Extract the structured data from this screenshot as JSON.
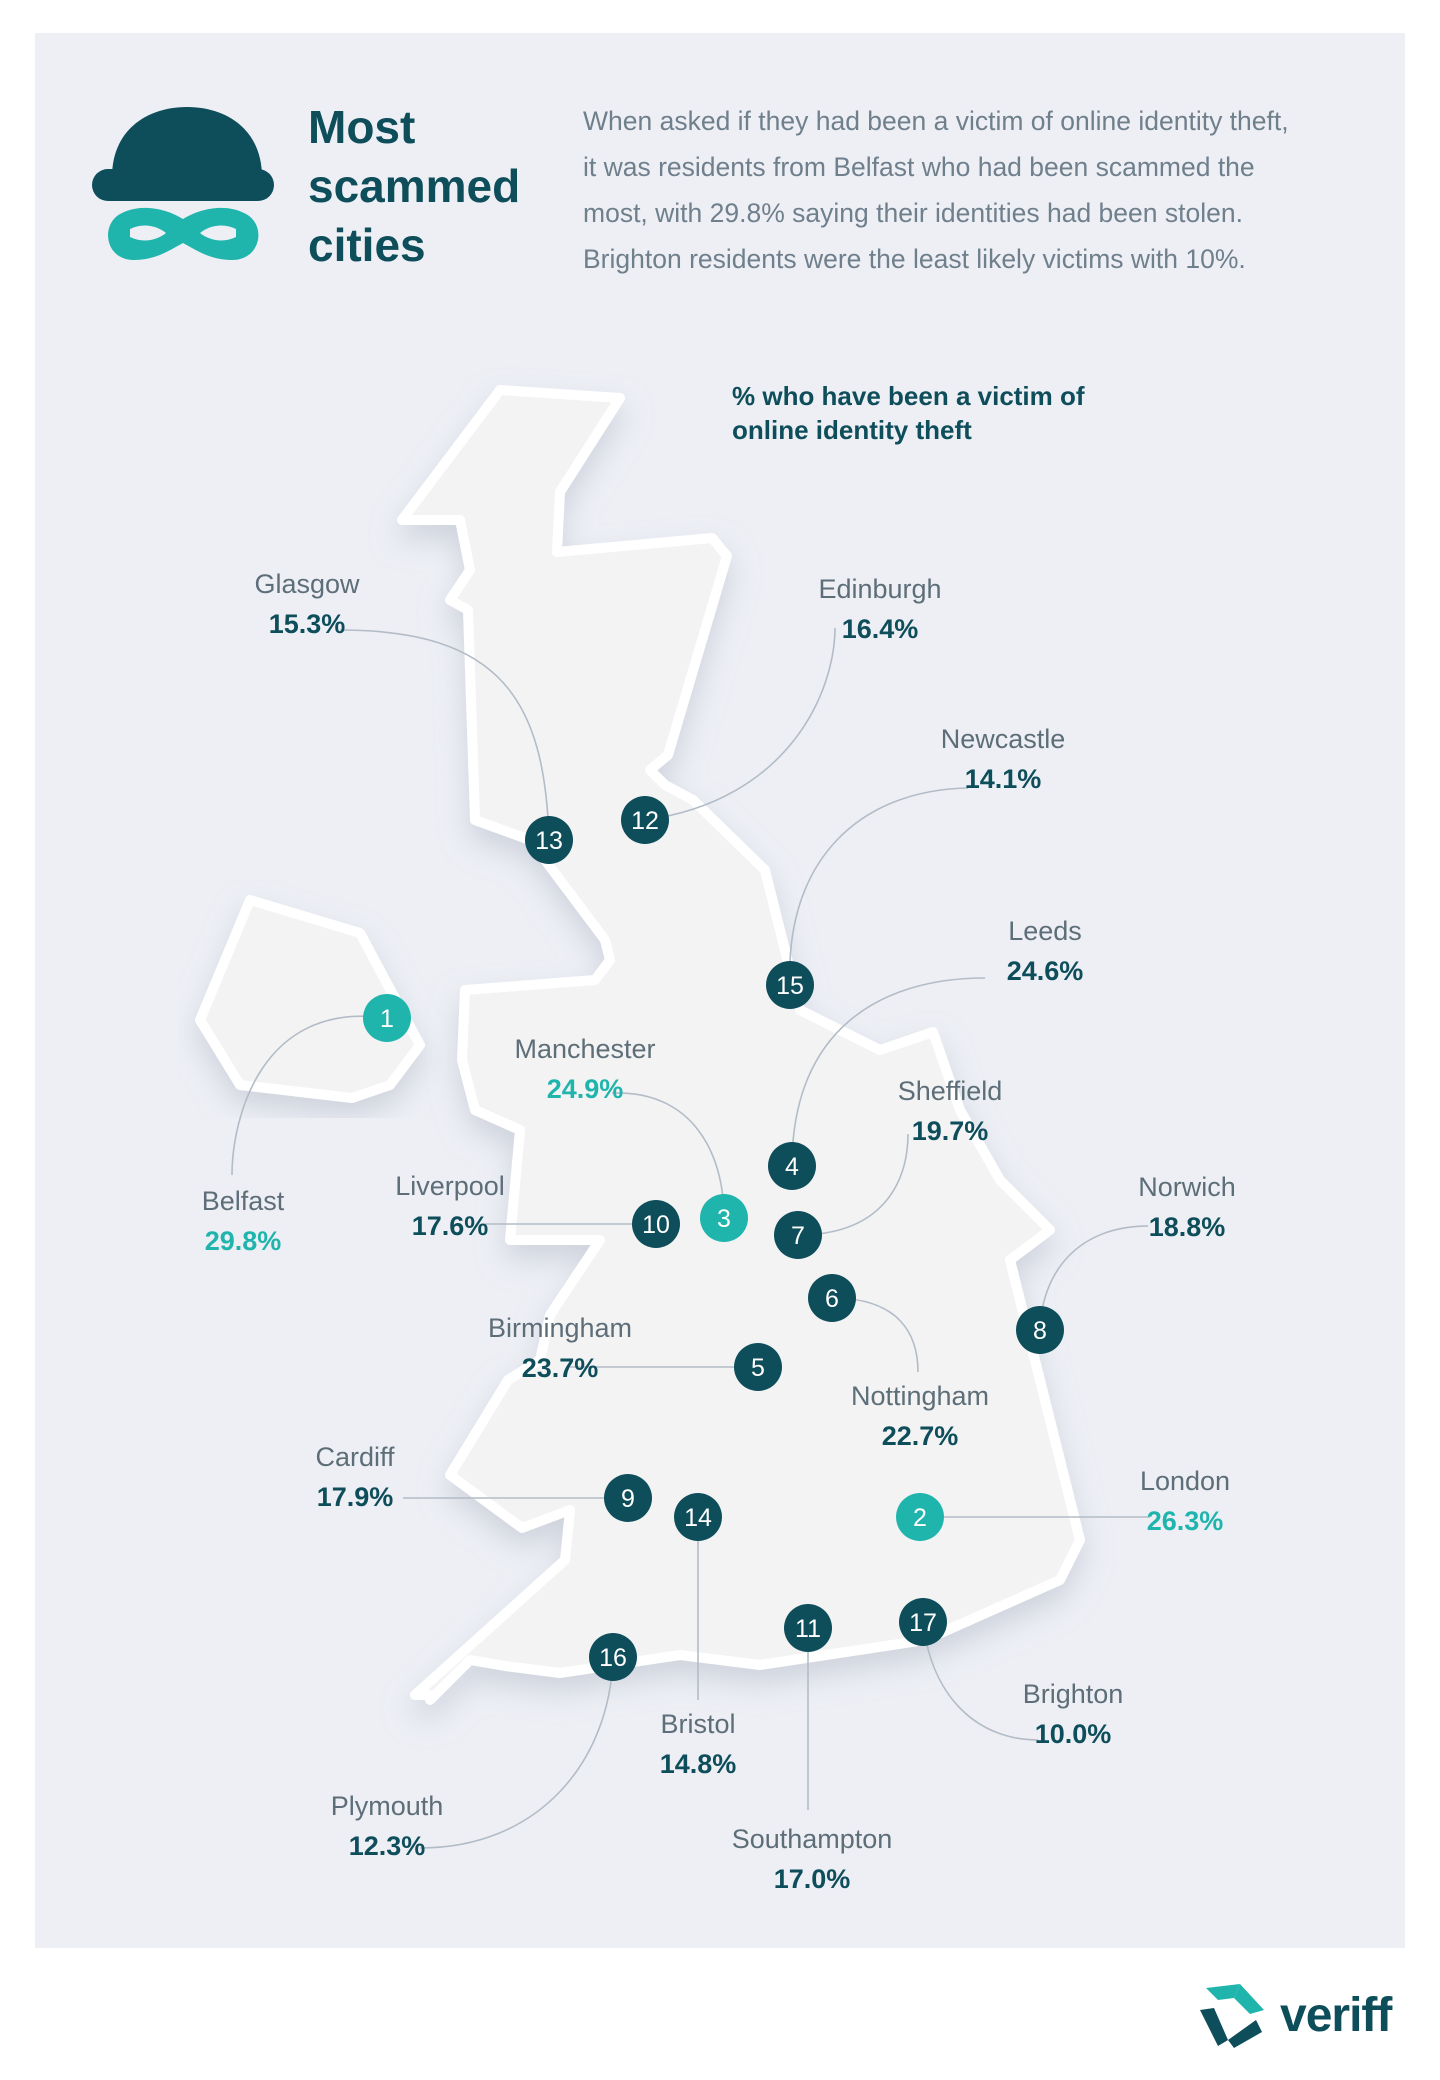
{
  "header": {
    "title_lines": [
      "Most",
      "scammed",
      "cities"
    ],
    "description_lines": [
      "When asked if they had been a victim of online identity theft,",
      "it was residents from Belfast who had been scammed the",
      "most, with 29.8% saying their identities had been stolen.",
      "Brighton residents were the least likely victims with 10%."
    ],
    "icon": "burglar-mask-icon"
  },
  "legend": {
    "lines": [
      "% who have been a victim of",
      "online identity theft"
    ]
  },
  "colors": {
    "dark_teal": "#0e4d5a",
    "accent_teal": "#1fb5ac",
    "muted_text": "#5d6e78",
    "land": "#f3f3f4"
  },
  "cities": [
    {
      "rank": 1,
      "name": "Belfast",
      "value": "29.8%",
      "highlight": true
    },
    {
      "rank": 2,
      "name": "London",
      "value": "26.3%",
      "highlight": true
    },
    {
      "rank": 3,
      "name": "Manchester",
      "value": "24.9%",
      "highlight": true
    },
    {
      "rank": 4,
      "name": "Leeds",
      "value": "24.6%",
      "highlight": false
    },
    {
      "rank": 5,
      "name": "Birmingham",
      "value": "23.7%",
      "highlight": false
    },
    {
      "rank": 6,
      "name": "Nottingham",
      "value": "22.7%",
      "highlight": false
    },
    {
      "rank": 7,
      "name": "Sheffield",
      "value": "19.7%",
      "highlight": false
    },
    {
      "rank": 8,
      "name": "Norwich",
      "value": "18.8%",
      "highlight": false
    },
    {
      "rank": 9,
      "name": "Cardiff",
      "value": "17.9%",
      "highlight": false
    },
    {
      "rank": 10,
      "name": "Liverpool",
      "value": "17.6%",
      "highlight": false
    },
    {
      "rank": 11,
      "name": "Southampton",
      "value": "17.0%",
      "highlight": false
    },
    {
      "rank": 12,
      "name": "Edinburgh",
      "value": "16.4%",
      "highlight": false
    },
    {
      "rank": 13,
      "name": "Glasgow",
      "value": "15.3%",
      "highlight": false
    },
    {
      "rank": 14,
      "name": "Bristol",
      "value": "14.8%",
      "highlight": false
    },
    {
      "rank": 15,
      "name": "Newcastle",
      "value": "14.1%",
      "highlight": false
    },
    {
      "rank": 16,
      "name": "Plymouth",
      "value": "12.3%",
      "highlight": false
    },
    {
      "rank": 17,
      "name": "Brighton",
      "value": "10.0%",
      "highlight": false
    }
  ],
  "brand": {
    "name": "veriff",
    "icon": "veriff-logo-icon"
  }
}
